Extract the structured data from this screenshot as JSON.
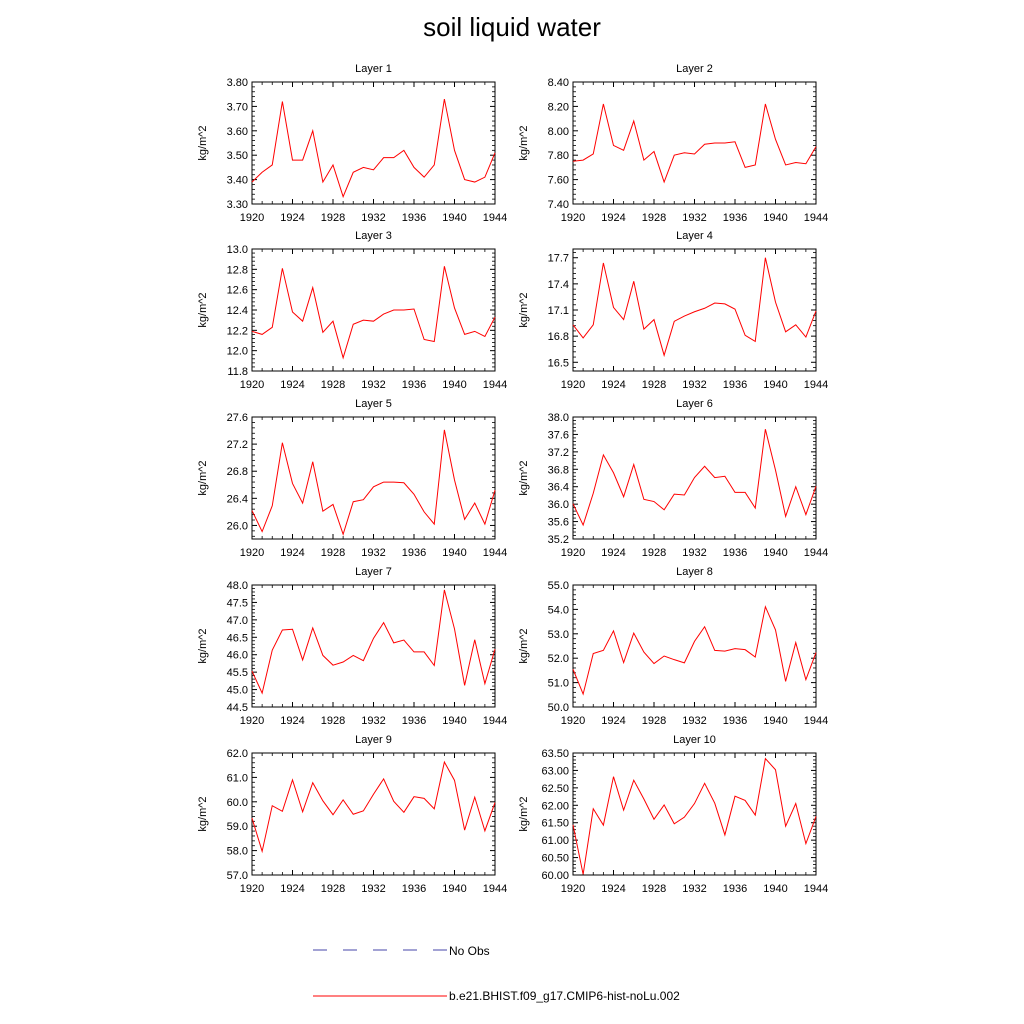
{
  "title": "soil liquid water",
  "colors": {
    "model": "#ff0000",
    "obs": "#4444aa",
    "axis": "#000000"
  },
  "legend": {
    "obs_label": "No Obs",
    "model_label": "b.e21.BHIST.f09_g17.CMIP6-hist-noLu.002"
  },
  "chart_data": [
    {
      "type": "line",
      "title": "Layer 1",
      "ylabel": "kg/m^2",
      "xlim": [
        1920,
        1944
      ],
      "xticks": [
        1920,
        1924,
        1928,
        1932,
        1936,
        1940,
        1944
      ],
      "ylim": [
        3.3,
        3.8
      ],
      "yticks": [
        3.3,
        3.4,
        3.5,
        3.6,
        3.7,
        3.8
      ],
      "ydec": 2,
      "x": [
        1920,
        1921,
        1922,
        1923,
        1924,
        1925,
        1926,
        1927,
        1928,
        1929,
        1930,
        1931,
        1932,
        1933,
        1934,
        1935,
        1936,
        1937,
        1938,
        1939,
        1940,
        1941,
        1942,
        1943,
        1944
      ],
      "series": [
        {
          "values": [
            3.39,
            3.43,
            3.46,
            3.72,
            3.48,
            3.48,
            3.6,
            3.39,
            3.46,
            3.33,
            3.43,
            3.45,
            3.44,
            3.49,
            3.49,
            3.52,
            3.45,
            3.41,
            3.46,
            3.73,
            3.52,
            3.4,
            3.39,
            3.41,
            3.51
          ]
        }
      ]
    },
    {
      "type": "line",
      "title": "Layer 2",
      "ylabel": "kg/m^2",
      "xlim": [
        1920,
        1944
      ],
      "xticks": [
        1920,
        1924,
        1928,
        1932,
        1936,
        1940,
        1944
      ],
      "ylim": [
        7.4,
        8.4
      ],
      "yticks": [
        7.4,
        7.6,
        7.8,
        8.0,
        8.2,
        8.4
      ],
      "ydec": 2,
      "x": [
        1920,
        1921,
        1922,
        1923,
        1924,
        1925,
        1926,
        1927,
        1928,
        1929,
        1930,
        1931,
        1932,
        1933,
        1934,
        1935,
        1936,
        1937,
        1938,
        1939,
        1940,
        1941,
        1942,
        1943,
        1944
      ],
      "series": [
        {
          "values": [
            7.75,
            7.76,
            7.81,
            8.22,
            7.88,
            7.84,
            8.08,
            7.76,
            7.83,
            7.58,
            7.8,
            7.82,
            7.81,
            7.89,
            7.9,
            7.9,
            7.91,
            7.7,
            7.72,
            8.22,
            7.93,
            7.72,
            7.74,
            7.73,
            7.87
          ]
        }
      ]
    },
    {
      "type": "line",
      "title": "Layer 3",
      "ylabel": "kg/m^2",
      "xlim": [
        1920,
        1944
      ],
      "xticks": [
        1920,
        1924,
        1928,
        1932,
        1936,
        1940,
        1944
      ],
      "ylim": [
        11.8,
        13.0
      ],
      "yticks": [
        11.8,
        12.0,
        12.2,
        12.4,
        12.6,
        12.8,
        13.0
      ],
      "ydec": 1,
      "x": [
        1920,
        1921,
        1922,
        1923,
        1924,
        1925,
        1926,
        1927,
        1928,
        1929,
        1930,
        1931,
        1932,
        1933,
        1934,
        1935,
        1936,
        1937,
        1938,
        1939,
        1940,
        1941,
        1942,
        1943,
        1944
      ],
      "series": [
        {
          "values": [
            12.19,
            12.16,
            12.23,
            12.81,
            12.38,
            12.29,
            12.62,
            12.18,
            12.29,
            11.93,
            12.26,
            12.3,
            12.29,
            12.36,
            12.4,
            12.4,
            12.41,
            12.11,
            12.09,
            12.83,
            12.42,
            12.16,
            12.19,
            12.14,
            12.33
          ]
        }
      ]
    },
    {
      "type": "line",
      "title": "Layer 4",
      "ylabel": "kg/m^2",
      "xlim": [
        1920,
        1944
      ],
      "xticks": [
        1920,
        1924,
        1928,
        1932,
        1936,
        1940,
        1944
      ],
      "ylim": [
        16.4,
        17.8
      ],
      "yticks": [
        16.5,
        16.8,
        17.1,
        17.4,
        17.7
      ],
      "ydec": 1,
      "x": [
        1920,
        1921,
        1922,
        1923,
        1924,
        1925,
        1926,
        1927,
        1928,
        1929,
        1930,
        1931,
        1932,
        1933,
        1934,
        1935,
        1936,
        1937,
        1938,
        1939,
        1940,
        1941,
        1942,
        1943,
        1944
      ],
      "series": [
        {
          "values": [
            16.93,
            16.78,
            16.93,
            17.64,
            17.13,
            16.99,
            17.43,
            16.88,
            16.99,
            16.58,
            16.97,
            17.03,
            17.08,
            17.12,
            17.18,
            17.17,
            17.11,
            16.81,
            16.74,
            17.7,
            17.19,
            16.85,
            16.93,
            16.79,
            17.09
          ]
        }
      ]
    },
    {
      "type": "line",
      "title": "Layer 5",
      "ylabel": "kg/m^2",
      "xlim": [
        1920,
        1944
      ],
      "xticks": [
        1920,
        1924,
        1928,
        1932,
        1936,
        1940,
        1944
      ],
      "ylim": [
        25.8,
        27.6
      ],
      "yticks": [
        26.0,
        26.4,
        26.8,
        27.2,
        27.6
      ],
      "ydec": 1,
      "x": [
        1920,
        1921,
        1922,
        1923,
        1924,
        1925,
        1926,
        1927,
        1928,
        1929,
        1930,
        1931,
        1932,
        1933,
        1934,
        1935,
        1936,
        1937,
        1938,
        1939,
        1940,
        1941,
        1942,
        1943,
        1944
      ],
      "series": [
        {
          "values": [
            26.22,
            25.91,
            26.29,
            27.22,
            26.62,
            26.33,
            26.94,
            26.21,
            26.31,
            25.87,
            26.35,
            26.38,
            26.57,
            26.64,
            26.64,
            26.63,
            26.46,
            26.2,
            26.02,
            27.41,
            26.67,
            26.09,
            26.33,
            26.02,
            26.52
          ]
        }
      ]
    },
    {
      "type": "line",
      "title": "Layer 6",
      "ylabel": "kg/m^2",
      "xlim": [
        1920,
        1944
      ],
      "xticks": [
        1920,
        1924,
        1928,
        1932,
        1936,
        1940,
        1944
      ],
      "ylim": [
        35.2,
        38.0
      ],
      "yticks": [
        35.2,
        35.6,
        36.0,
        36.4,
        36.8,
        37.2,
        37.6,
        38.0
      ],
      "ydec": 1,
      "x": [
        1920,
        1921,
        1922,
        1923,
        1924,
        1925,
        1926,
        1927,
        1928,
        1929,
        1930,
        1931,
        1932,
        1933,
        1934,
        1935,
        1936,
        1937,
        1938,
        1939,
        1940,
        1941,
        1942,
        1943,
        1944
      ],
      "series": [
        {
          "values": [
            36.01,
            35.52,
            36.25,
            37.13,
            36.72,
            36.17,
            36.91,
            36.11,
            36.06,
            35.87,
            36.23,
            36.21,
            36.61,
            36.87,
            36.61,
            36.64,
            36.27,
            36.27,
            35.91,
            37.72,
            36.78,
            35.72,
            36.4,
            35.76,
            36.41
          ]
        }
      ]
    },
    {
      "type": "line",
      "title": "Layer 7",
      "ylabel": "kg/m^2",
      "xlim": [
        1920,
        1944
      ],
      "xticks": [
        1920,
        1924,
        1928,
        1932,
        1936,
        1940,
        1944
      ],
      "ylim": [
        44.5,
        48.0
      ],
      "yticks": [
        44.5,
        45.0,
        45.5,
        46.0,
        46.5,
        47.0,
        47.5,
        48.0
      ],
      "ydec": 1,
      "x": [
        1920,
        1921,
        1922,
        1923,
        1924,
        1925,
        1926,
        1927,
        1928,
        1929,
        1930,
        1931,
        1932,
        1933,
        1934,
        1935,
        1936,
        1937,
        1938,
        1939,
        1940,
        1941,
        1942,
        1943,
        1944
      ],
      "series": [
        {
          "values": [
            45.53,
            44.9,
            46.13,
            46.71,
            46.73,
            45.85,
            46.77,
            45.98,
            45.7,
            45.79,
            45.98,
            45.83,
            46.47,
            46.92,
            46.34,
            46.42,
            46.08,
            46.08,
            45.69,
            47.86,
            46.74,
            45.12,
            46.43,
            45.17,
            46.16
          ]
        }
      ]
    },
    {
      "type": "line",
      "title": "Layer 8",
      "ylabel": "kg/m^2",
      "xlim": [
        1920,
        1944
      ],
      "xticks": [
        1920,
        1924,
        1928,
        1932,
        1936,
        1940,
        1944
      ],
      "ylim": [
        50.0,
        55.0
      ],
      "yticks": [
        50.0,
        51.0,
        52.0,
        53.0,
        54.0,
        55.0
      ],
      "ydec": 1,
      "x": [
        1920,
        1921,
        1922,
        1923,
        1924,
        1925,
        1926,
        1927,
        1928,
        1929,
        1930,
        1931,
        1932,
        1933,
        1934,
        1935,
        1936,
        1937,
        1938,
        1939,
        1940,
        1941,
        1942,
        1943,
        1944
      ],
      "series": [
        {
          "values": [
            51.55,
            50.53,
            52.19,
            52.32,
            53.12,
            51.82,
            53.03,
            52.25,
            51.78,
            52.09,
            51.94,
            51.81,
            52.69,
            53.29,
            52.32,
            52.29,
            52.39,
            52.35,
            52.05,
            54.11,
            53.16,
            51.05,
            52.64,
            51.12,
            52.23
          ]
        }
      ]
    },
    {
      "type": "line",
      "title": "Layer 9",
      "ylabel": "kg/m^2",
      "xlim": [
        1920,
        1944
      ],
      "xticks": [
        1920,
        1924,
        1928,
        1932,
        1936,
        1940,
        1944
      ],
      "ylim": [
        57.0,
        62.0
      ],
      "yticks": [
        57.0,
        58.0,
        59.0,
        60.0,
        61.0,
        62.0
      ],
      "ydec": 1,
      "x": [
        1920,
        1921,
        1922,
        1923,
        1924,
        1925,
        1926,
        1927,
        1928,
        1929,
        1930,
        1931,
        1932,
        1933,
        1934,
        1935,
        1936,
        1937,
        1938,
        1939,
        1940,
        1941,
        1942,
        1943,
        1944
      ],
      "series": [
        {
          "values": [
            59.33,
            57.97,
            59.84,
            59.61,
            60.9,
            59.59,
            60.78,
            60.04,
            59.47,
            60.08,
            59.49,
            59.63,
            60.31,
            60.94,
            60.02,
            59.57,
            60.21,
            60.14,
            59.71,
            61.63,
            60.88,
            58.84,
            60.19,
            58.81,
            59.97
          ]
        }
      ]
    },
    {
      "type": "line",
      "title": "Layer 10",
      "ylabel": "kg/m^2",
      "xlim": [
        1920,
        1944
      ],
      "xticks": [
        1920,
        1924,
        1928,
        1932,
        1936,
        1940,
        1944
      ],
      "ylim": [
        60.0,
        63.5
      ],
      "yticks": [
        60.0,
        60.5,
        61.0,
        61.5,
        62.0,
        62.5,
        63.0,
        63.5
      ],
      "ydec": 2,
      "x": [
        1920,
        1921,
        1922,
        1923,
        1924,
        1925,
        1926,
        1927,
        1928,
        1929,
        1930,
        1931,
        1932,
        1933,
        1934,
        1935,
        1936,
        1937,
        1938,
        1939,
        1940,
        1941,
        1942,
        1943,
        1944
      ],
      "series": [
        {
          "values": [
            61.44,
            60.02,
            61.9,
            61.43,
            62.82,
            61.86,
            62.72,
            62.18,
            61.6,
            62.01,
            61.47,
            61.66,
            62.05,
            62.63,
            62.06,
            61.15,
            62.26,
            62.14,
            61.72,
            63.34,
            63.02,
            61.4,
            62.05,
            60.9,
            61.68
          ]
        }
      ]
    }
  ]
}
